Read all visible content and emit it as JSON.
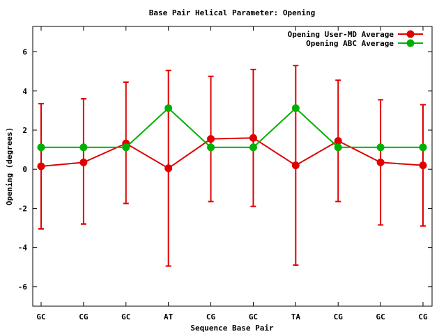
{
  "chart_data": {
    "type": "line",
    "title": "Base Pair Helical Parameter: Opening",
    "xlabel": "Sequence Base Pair",
    "ylabel": "Opening (degrees)",
    "categories": [
      "GC",
      "CG",
      "GC",
      "AT",
      "CG",
      "GC",
      "TA",
      "CG",
      "GC",
      "CG"
    ],
    "ylim": [
      -7,
      7.3
    ],
    "yticks": [
      -6,
      -4,
      -2,
      0,
      2,
      4,
      6
    ],
    "ytick_labels": [
      "-6",
      "-4",
      "-2",
      "0",
      "2",
      "4",
      "6"
    ],
    "grid": false,
    "legend_position": "top-right",
    "series": [
      {
        "name": "Opening User-MD Average",
        "color": "#e00000",
        "values": [
          0.15,
          0.35,
          1.32,
          0.05,
          1.55,
          1.6,
          0.2,
          1.45,
          0.35,
          0.2
        ],
        "error_low": [
          -3.05,
          -2.8,
          -1.75,
          -4.95,
          -1.65,
          -1.9,
          -4.9,
          -1.65,
          -2.85,
          -2.9
        ],
        "error_high": [
          3.35,
          3.6,
          4.45,
          5.05,
          4.75,
          5.1,
          5.3,
          4.55,
          3.55,
          3.3
        ]
      },
      {
        "name": "Opening ABC Average",
        "color": "#00b000",
        "values": [
          1.12,
          1.12,
          1.12,
          3.12,
          1.12,
          1.12,
          3.12,
          1.12,
          1.12,
          1.12
        ]
      }
    ]
  }
}
